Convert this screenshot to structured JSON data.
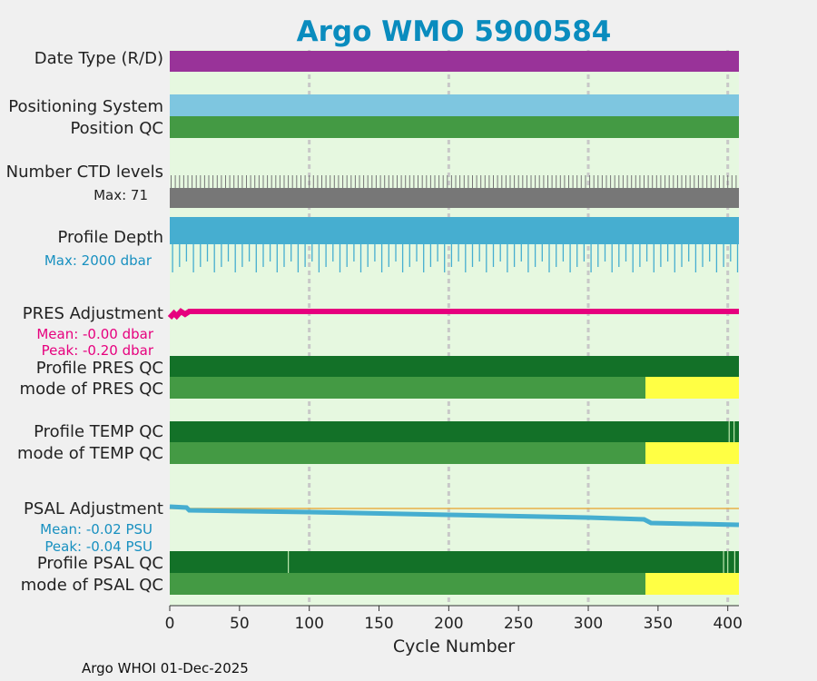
{
  "chart_data": {
    "type": "bar",
    "title": "Argo WMO 5900584",
    "xlabel": "Cycle Number",
    "xlim": [
      0,
      408
    ],
    "xticks": [
      0,
      50,
      100,
      150,
      200,
      250,
      300,
      350,
      400
    ],
    "grid_x": [
      100,
      200,
      300,
      400
    ],
    "footer": "Argo WHOI 01-Dec-2025",
    "rows": {
      "date_type": {
        "label": "Date Type (R/D)",
        "segments": [
          {
            "from": 0,
            "to": 408,
            "color": "#993399"
          }
        ]
      },
      "positioning_system": {
        "label": "Positioning System",
        "segments": [
          {
            "from": 0,
            "to": 408,
            "color": "#7ec6e0"
          }
        ]
      },
      "position_qc": {
        "label": "Position QC",
        "segments": [
          {
            "from": 0,
            "to": 408,
            "color": "#449a44"
          }
        ]
      },
      "ctd_levels": {
        "label": "Number CTD levels",
        "max_label": "Max: 71",
        "max_value": 71,
        "color": "#777777"
      },
      "profile_depth": {
        "label": "Profile Depth",
        "max_label": "Max: 2000 dbar",
        "max_value": 2000,
        "color": "#46aed0"
      },
      "pres_adjustment": {
        "label": "PRES Adjustment",
        "mean_label": "Mean: -0.00 dbar",
        "peak_label": "Peak: -0.20 dbar",
        "color": "#e6007e"
      },
      "profile_pres_qc": {
        "label": "Profile PRES QC",
        "segments": [
          {
            "from": 0,
            "to": 408,
            "color": "#137128"
          }
        ]
      },
      "mode_pres_qc": {
        "label": "mode of PRES QC",
        "segments": [
          {
            "from": 0,
            "to": 341,
            "color": "#449a44"
          },
          {
            "from": 341,
            "to": 408,
            "color": "#ffff44"
          }
        ]
      },
      "profile_temp_qc": {
        "label": "Profile TEMP QC",
        "segments": [
          {
            "from": 0,
            "to": 408,
            "color": "#137128"
          }
        ],
        "ticks": [
          401,
          404.5
        ]
      },
      "mode_temp_qc": {
        "label": "mode of TEMP QC",
        "segments": [
          {
            "from": 0,
            "to": 341,
            "color": "#449a44"
          },
          {
            "from": 341,
            "to": 408,
            "color": "#ffff44"
          }
        ]
      },
      "psal_adjustment": {
        "label": "PSAL Adjustment",
        "mean_label": "Mean: -0.02 PSU",
        "peak_label": "Peak: -0.04 PSU",
        "color": "#46aed0",
        "reference_color": "#e8b048"
      },
      "profile_psal_qc": {
        "label": "Profile PSAL QC",
        "segments": [
          {
            "from": 0,
            "to": 408,
            "color": "#137128"
          }
        ],
        "ticks": [
          85,
          397,
          400,
          405
        ]
      },
      "mode_psal_qc": {
        "label": "mode of PSAL QC",
        "segments": [
          {
            "from": 0,
            "to": 341,
            "color": "#449a44"
          },
          {
            "from": 341,
            "to": 408,
            "color": "#ffff44"
          }
        ]
      }
    }
  }
}
